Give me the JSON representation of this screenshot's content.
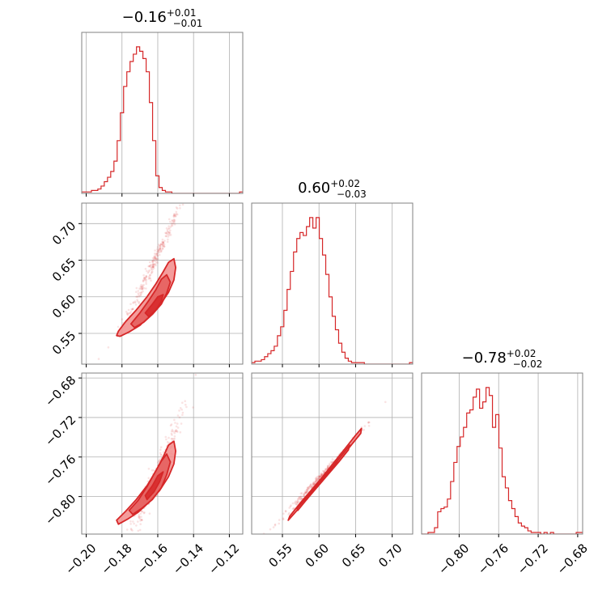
{
  "chart_data": {
    "type": "corner",
    "color": "#d62728",
    "parameters": [
      {
        "title": {
          "median": "−0.16",
          "plus": "+0.01",
          "minus": "−0.01"
        },
        "range": [
          -0.2025,
          -0.1125
        ],
        "ticks": [
          -0.2,
          -0.18,
          -0.16,
          -0.14,
          -0.12
        ],
        "tick_labels": [
          "−0.20",
          "−0.18",
          "−0.16",
          "−0.14",
          "−0.12"
        ],
        "hist": {
          "edges_start": -0.2025,
          "bin_width": 0.0018,
          "counts": [
            1,
            1,
            1,
            2,
            2,
            3,
            5,
            8,
            11,
            15,
            22,
            36,
            55,
            73,
            83,
            90,
            95,
            100,
            97,
            92,
            83,
            62,
            36,
            12,
            4,
            2,
            1,
            1,
            0,
            0,
            0,
            0,
            0,
            0,
            0,
            0,
            0,
            0,
            0,
            0,
            0,
            0,
            0,
            0,
            0,
            0,
            0,
            0,
            0,
            1
          ]
        }
      },
      {
        "title": {
          "median": "0.60",
          "plus": "+0.02",
          "minus": "−0.03"
        },
        "range": [
          0.508,
          0.728
        ],
        "ticks": [
          0.55,
          0.6,
          0.65,
          0.7
        ],
        "tick_labels": [
          "0.55",
          "0.60",
          "0.65",
          "0.70"
        ],
        "hist": {
          "edges_start": 0.508,
          "bin_width": 0.0044,
          "counts": [
            1,
            2,
            2,
            3,
            5,
            7,
            9,
            12,
            19,
            25,
            36,
            50,
            62,
            75,
            84,
            88,
            86,
            92,
            98,
            91,
            98,
            84,
            73,
            60,
            45,
            32,
            23,
            14,
            8,
            4,
            2,
            1,
            1,
            1,
            1,
            0,
            0,
            0,
            0,
            0,
            0,
            0,
            0,
            0,
            0,
            0,
            0,
            0,
            0,
            1
          ]
        }
      },
      {
        "title": {
          "median": "−0.78",
          "plus": "+0.02",
          "minus": "−0.02"
        },
        "range": [
          -0.838,
          -0.675
        ],
        "ticks": [
          -0.8,
          -0.76,
          -0.72,
          -0.68
        ],
        "tick_labels": [
          "−0.80",
          "−0.76",
          "−0.72",
          "−0.68"
        ],
        "hist": {
          "edges_start": -0.838,
          "bin_width": 0.00326,
          "counts": [
            0,
            0,
            1,
            1,
            4,
            14,
            16,
            17,
            22,
            33,
            45,
            55,
            61,
            67,
            76,
            78,
            86,
            91,
            79,
            83,
            92,
            87,
            67,
            75,
            54,
            36,
            29,
            21,
            16,
            11,
            7,
            5,
            4,
            2,
            1,
            1,
            1,
            0,
            1,
            0,
            1,
            0,
            0,
            0,
            0,
            0,
            0,
            0,
            1,
            1
          ]
        }
      }
    ],
    "pairs": [
      {
        "x": 0,
        "y": 1,
        "trend": {
          "coeffs": [
            0.6525,
            5.18,
            21.0
          ],
          "scatter_spread": 0.006
        },
        "contours": [
          {
            "fill": "#f28b89",
            "pts": [
              [
                -0.181,
                0.546
              ],
              [
                -0.176,
                0.552
              ],
              [
                -0.17,
                0.561
              ],
              [
                -0.165,
                0.573
              ],
              [
                -0.159,
                0.588
              ],
              [
                -0.154,
                0.606
              ],
              [
                -0.151,
                0.623
              ],
              [
                -0.15,
                0.64
              ],
              [
                -0.151,
                0.652
              ],
              [
                -0.154,
                0.647
              ],
              [
                -0.157,
                0.634
              ],
              [
                -0.161,
                0.618
              ],
              [
                -0.166,
                0.6
              ],
              [
                -0.172,
                0.582
              ],
              [
                -0.178,
                0.566
              ],
              [
                -0.182,
                0.553
              ],
              [
                -0.183,
                0.547
              ]
            ]
          },
          {
            "fill": "#e45d5c",
            "pts": [
              [
                -0.173,
                0.558
              ],
              [
                -0.168,
                0.565
              ],
              [
                -0.163,
                0.576
              ],
              [
                -0.158,
                0.59
              ],
              [
                -0.155,
                0.605
              ],
              [
                -0.153,
                0.62
              ],
              [
                -0.155,
                0.63
              ],
              [
                -0.158,
                0.624
              ],
              [
                -0.161,
                0.61
              ],
              [
                -0.165,
                0.595
              ],
              [
                -0.17,
                0.578
              ],
              [
                -0.175,
                0.563
              ]
            ]
          },
          {
            "fill": "#d62728",
            "pts": [
              [
                -0.165,
                0.573
              ],
              [
                -0.161,
                0.582
              ],
              [
                -0.158,
                0.594
              ],
              [
                -0.157,
                0.603
              ],
              [
                -0.16,
                0.6
              ],
              [
                -0.163,
                0.59
              ],
              [
                -0.167,
                0.578
              ]
            ]
          }
        ]
      },
      {
        "x": 0,
        "y": 2,
        "trend": {
          "coeffs": [
            -0.7818,
            4.12,
            17.0
          ],
          "scatter_spread": 0.008
        },
        "contours": [
          {
            "fill": "#f28b89",
            "pts": [
              [
                -0.182,
                -0.828
              ],
              [
                -0.177,
                -0.823
              ],
              [
                -0.171,
                -0.816
              ],
              [
                -0.165,
                -0.806
              ],
              [
                -0.159,
                -0.794
              ],
              [
                -0.154,
                -0.78
              ],
              [
                -0.151,
                -0.767
              ],
              [
                -0.15,
                -0.754
              ],
              [
                -0.151,
                -0.744
              ],
              [
                -0.154,
                -0.748
              ],
              [
                -0.157,
                -0.76
              ],
              [
                -0.161,
                -0.774
              ],
              [
                -0.166,
                -0.789
              ],
              [
                -0.172,
                -0.803
              ],
              [
                -0.178,
                -0.815
              ],
              [
                -0.183,
                -0.824
              ]
            ]
          },
          {
            "fill": "#e45d5c",
            "pts": [
              [
                -0.174,
                -0.818
              ],
              [
                -0.169,
                -0.812
              ],
              [
                -0.163,
                -0.803
              ],
              [
                -0.158,
                -0.791
              ],
              [
                -0.155,
                -0.778
              ],
              [
                -0.153,
                -0.765
              ],
              [
                -0.155,
                -0.757
              ],
              [
                -0.158,
                -0.764
              ],
              [
                -0.162,
                -0.777
              ],
              [
                -0.166,
                -0.79
              ],
              [
                -0.171,
                -0.804
              ],
              [
                -0.176,
                -0.814
              ]
            ]
          },
          {
            "fill": "#d62728",
            "pts": [
              [
                -0.166,
                -0.803
              ],
              [
                -0.162,
                -0.795
              ],
              [
                -0.159,
                -0.785
              ],
              [
                -0.157,
                -0.775
              ],
              [
                -0.16,
                -0.779
              ],
              [
                -0.163,
                -0.789
              ],
              [
                -0.167,
                -0.799
              ]
            ]
          }
        ]
      },
      {
        "x": 1,
        "y": 2,
        "trend": {
          "coeffs": [
            -0.7818,
            0.8,
            0.4
          ],
          "scatter_spread": 0.002
        },
        "contours": [
          {
            "fill": "#f28b89",
            "pts": [
              [
                0.56,
                -0.82
              ],
              [
                0.575,
                -0.806
              ],
              [
                0.59,
                -0.793
              ],
              [
                0.605,
                -0.78
              ],
              [
                0.62,
                -0.766
              ],
              [
                0.635,
                -0.752
              ],
              [
                0.65,
                -0.738
              ],
              [
                0.658,
                -0.731
              ],
              [
                0.657,
                -0.736
              ],
              [
                0.645,
                -0.747
              ],
              [
                0.63,
                -0.761
              ],
              [
                0.615,
                -0.775
              ],
              [
                0.6,
                -0.788
              ],
              [
                0.585,
                -0.801
              ],
              [
                0.57,
                -0.814
              ],
              [
                0.558,
                -0.824
              ]
            ]
          },
          {
            "fill": "#e45d5c",
            "pts": [
              [
                0.57,
                -0.812
              ],
              [
                0.585,
                -0.799
              ],
              [
                0.6,
                -0.786
              ],
              [
                0.615,
                -0.773
              ],
              [
                0.63,
                -0.759
              ],
              [
                0.642,
                -0.748
              ],
              [
                0.64,
                -0.753
              ],
              [
                0.627,
                -0.765
              ],
              [
                0.612,
                -0.778
              ],
              [
                0.597,
                -0.791
              ],
              [
                0.582,
                -0.804
              ],
              [
                0.571,
                -0.814
              ]
            ]
          },
          {
            "fill": "#d62728",
            "pts": [
              [
                0.585,
                -0.799
              ],
              [
                0.6,
                -0.786
              ],
              [
                0.615,
                -0.773
              ],
              [
                0.625,
                -0.764
              ],
              [
                0.622,
                -0.769
              ],
              [
                0.608,
                -0.781
              ],
              [
                0.593,
                -0.794
              ],
              [
                0.584,
                -0.802
              ]
            ]
          }
        ]
      }
    ]
  }
}
